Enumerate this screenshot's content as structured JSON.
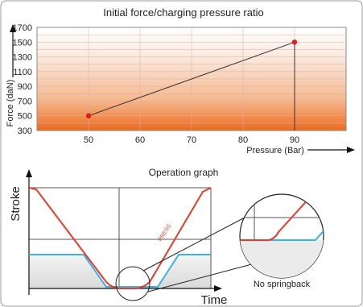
{
  "top_chart": {
    "title": "Initial force/charging pressure ratio",
    "ylabel": "Force (daN)",
    "xlabel": "Pressure (Bar)",
    "y_ticks": [
      "1700",
      "1500",
      "1300",
      "1100",
      "900",
      "700",
      "500",
      "300"
    ],
    "x_ticks": [
      "50",
      "60",
      "70",
      "80",
      "90"
    ]
  },
  "chart_data": {
    "type": "line",
    "title": "Initial force/charging pressure ratio",
    "xlabel": "Pressure (Bar)",
    "ylabel": "Force (daN)",
    "x": [
      50,
      90
    ],
    "series": [
      {
        "values": [
          500,
          1500
        ]
      }
    ],
    "xlim": [
      40,
      100
    ],
    "ylim": [
      300,
      1700
    ],
    "grid": true,
    "line_color": "#333333",
    "point_color": "#e21b1b"
  },
  "operation_graph": {
    "title": "Operation graph",
    "y_axis_label": "Stroke",
    "x_axis_label": "Time",
    "curve_label": "PRESS",
    "detail_caption": "No springback"
  },
  "colors": {
    "press_curve": "#e8392a",
    "cushion_curve": "#3ab4e6",
    "gradient_bottom": "#ee6a1e",
    "gradient_top": "#fbe7db",
    "point": "#e21b1b"
  }
}
